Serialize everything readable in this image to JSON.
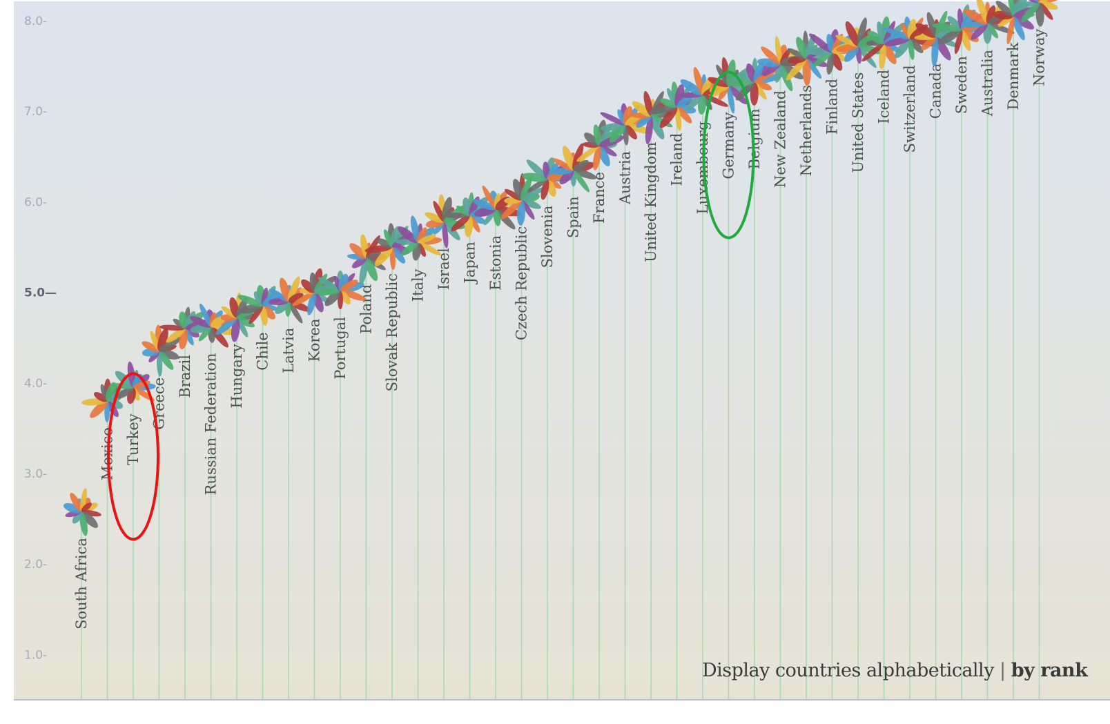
{
  "chart_data": {
    "type": "scatter",
    "title": "",
    "xlabel": "",
    "ylabel": "",
    "ylim": [
      0.6,
      8.25
    ],
    "yticks": [
      "1.0",
      "2.0",
      "3.0",
      "4.0",
      "5.0",
      "6.0",
      "7.0",
      "8.0"
    ],
    "major_ytick": "5.0",
    "grid": false,
    "marker": "flower",
    "petal_colors": [
      "#4a9bd0",
      "#b03a3a",
      "#5aa59a",
      "#e8783c",
      "#6e6e6e",
      "#8c4f9e",
      "#e6b83c",
      "#4caf6e"
    ],
    "stem_color": "#a8d8b4",
    "categories": [
      "South Africa",
      "Mexico",
      "Turkey",
      "Greece",
      "Brazil",
      "Russian Federation",
      "Hungary",
      "Chile",
      "Latvia",
      "Korea",
      "Portugal",
      "Poland",
      "Slovak Republic",
      "Italy",
      "Israel",
      "Japan",
      "Estonia",
      "Czech Republic",
      "Slovenia",
      "Spain",
      "France",
      "Austria",
      "United Kingdom",
      "Ireland",
      "Luxembourg",
      "Germany",
      "Belgium",
      "New Zealand",
      "Netherlands",
      "Finland",
      "United States",
      "Iceland",
      "Switzerland",
      "Canada",
      "Sweden",
      "Australia",
      "Denmark",
      "Norway"
    ],
    "values": [
      2.58,
      3.8,
      3.95,
      4.35,
      4.6,
      4.62,
      4.72,
      4.85,
      4.9,
      5.0,
      5.02,
      5.38,
      5.5,
      5.55,
      5.78,
      5.85,
      5.92,
      6.02,
      6.25,
      6.35,
      6.62,
      6.85,
      6.95,
      7.05,
      7.18,
      7.28,
      7.32,
      7.52,
      7.58,
      7.65,
      7.72,
      7.75,
      7.8,
      7.82,
      7.9,
      7.97,
      8.05,
      8.2
    ],
    "highlights": [
      {
        "category": "Turkey",
        "color": "#e81414"
      },
      {
        "category": "Germany",
        "color": "#1faa3c"
      }
    ]
  },
  "controls": {
    "sort_prefix": "Display countries alphabetically",
    "sort_separator": "|",
    "sort_active": "by rank"
  }
}
